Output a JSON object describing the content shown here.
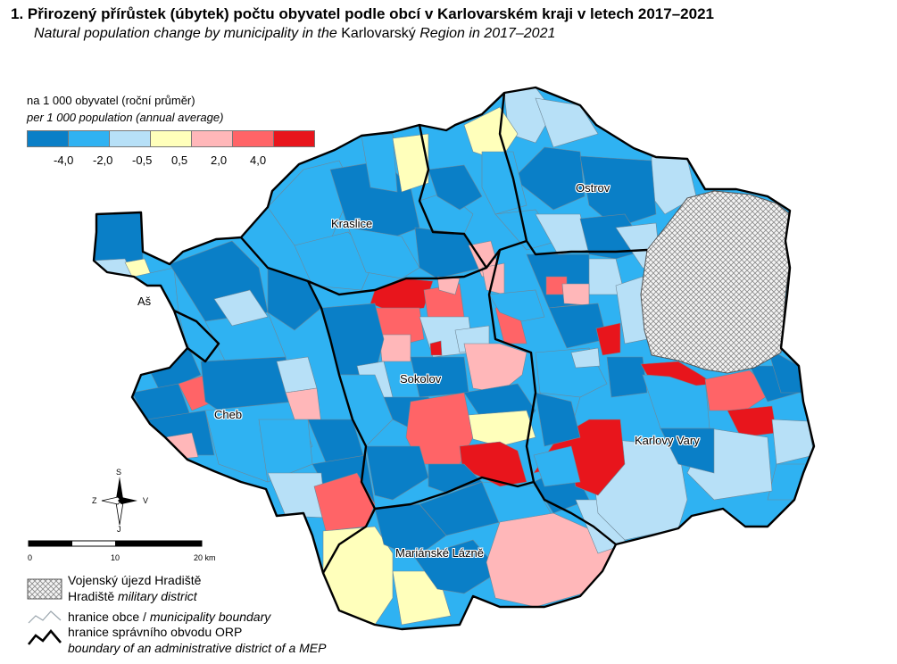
{
  "title": "1. Přirozený přírůstek (úbytek) počtu obyvatel podle obcí v Karlovarském kraji v letech 2017–2021",
  "subtitle": {
    "part1": "Natural population change by municipality in the ",
    "region": "Karlovarský",
    "part2": " Region in 2017–2021"
  },
  "legend": {
    "title_cz": "na 1 000 obyvatel (roční průměr)",
    "title_en": "per 1 000 population (annual average)",
    "colors": [
      "#0a7fc7",
      "#2fb2f2",
      "#b7e0f7",
      "#ffffbb",
      "#ffb7b9",
      "#ff6467",
      "#e8151c"
    ],
    "ticks": [
      "-4,0",
      "-2,0",
      "-0,5",
      "0,5",
      "2,0",
      "4,0"
    ]
  },
  "towns": {
    "kraslice": "Kraslice",
    "ostrov": "Ostrov",
    "as": "Aš",
    "sokolov": "Sokolov",
    "cheb": "Cheb",
    "karlovy_vary": "Karlovy Vary",
    "marianske_lazne": "Mariánské Lázně"
  },
  "compass": {
    "north": "S",
    "south": "J",
    "west": "Z",
    "east": "V"
  },
  "scalebar": {
    "labels": [
      "0",
      "10",
      "20 km"
    ]
  },
  "key": {
    "military_cz": "Vojenský újezd Hradiště",
    "military_en_prefix": "Hradiště ",
    "military_en_suffix": "military district",
    "muni_cz": "hranice obce / ",
    "muni_en": "municipality boundary",
    "orp_cz": "hranice správního obvodu ORP",
    "orp_en": "boundary of an administrative district of a MEP"
  }
}
